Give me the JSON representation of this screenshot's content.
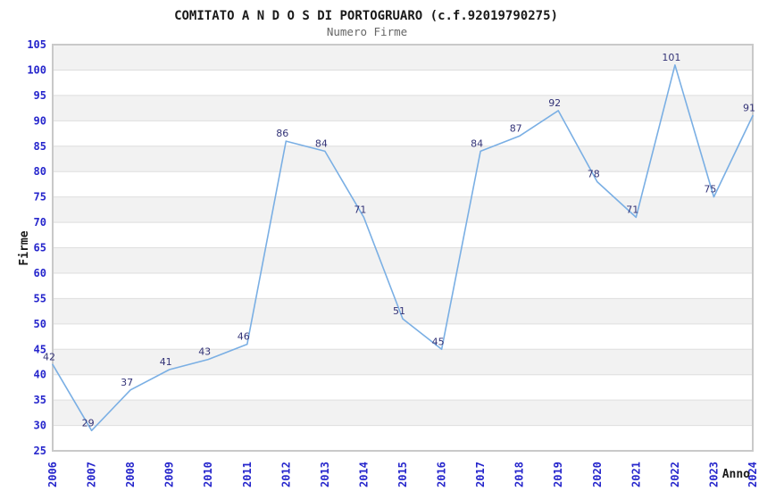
{
  "header": {
    "title": "COMITATO A N D O S DI PORTOGRUARO (c.f.92019790275)",
    "subtitle": "Numero Firme"
  },
  "palette": {
    "line": "#7aafe4",
    "tick_label": "#2626cc",
    "data_label": "#333377",
    "band_gray": "#f2f2f2",
    "band_white": "#ffffff",
    "grid_line": "#dedede",
    "plot_border": "#c9c9c9",
    "title_color": "#1a1a1a",
    "subtitle_color": "#666666"
  },
  "chart_data": {
    "type": "line",
    "title": "COMITATO A N D O S DI PORTOGRUARO (c.f.92019790275)",
    "subtitle": "Numero Firme",
    "xlabel": "Anno",
    "ylabel": "Firme",
    "categories": [
      "2006",
      "2007",
      "2008",
      "2009",
      "2010",
      "2011",
      "2012",
      "2013",
      "2014",
      "2015",
      "2016",
      "2017",
      "2018",
      "2019",
      "2020",
      "2021",
      "2022",
      "2023",
      "2024"
    ],
    "values": [
      42,
      29,
      37,
      41,
      43,
      46,
      86,
      84,
      71,
      51,
      45,
      84,
      87,
      92,
      78,
      71,
      101,
      75,
      91
    ],
    "ylim": [
      25,
      105
    ],
    "ytick_step": 5,
    "grid": "alternating-horizontal-bands",
    "legend": "none",
    "data_labels": true,
    "markers": false
  }
}
